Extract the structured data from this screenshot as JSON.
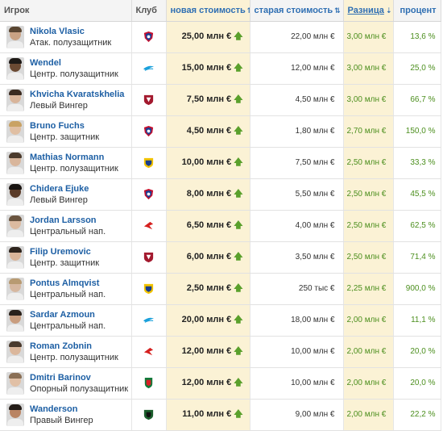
{
  "header": {
    "player": "Игрок",
    "club": "Клуб",
    "new_value": "новая стоимость",
    "old_value": "старая стоимость",
    "difference": "Разница",
    "percent": "процент",
    "sort_icon": "⇅",
    "sorted_icon": "⇣"
  },
  "up_arrow": "🡅",
  "rows": [
    {
      "name": "Nikola Vlasic",
      "position": "Атак. полузащитник",
      "club": "cska-crest-icon",
      "new_value": "25,00 млн €",
      "old_value": "22,00 млн €",
      "difference": "3,00 млн €",
      "percent": "13,6 %"
    },
    {
      "name": "Wendel",
      "position": "Центр. полузащитник",
      "club": "zenit-crest-icon",
      "new_value": "15,00 млн €",
      "old_value": "12,00 млн €",
      "difference": "3,00 млн €",
      "percent": "25,0 %"
    },
    {
      "name": "Khvicha Kvaratskhelia",
      "position": "Левый Вингер",
      "club": "rubin-crest-icon",
      "new_value": "7,50 млн €",
      "old_value": "4,50 млн €",
      "difference": "3,00 млн €",
      "percent": "66,7 %"
    },
    {
      "name": "Bruno Fuchs",
      "position": "Центр. защитник",
      "club": "cska-crest-icon",
      "new_value": "4,50 млн €",
      "old_value": "1,80 млн €",
      "difference": "2,70 млн €",
      "percent": "150,0 %"
    },
    {
      "name": "Mathias Normann",
      "position": "Центр. полузащитник",
      "club": "rostov-crest-icon",
      "new_value": "10,00 млн €",
      "old_value": "7,50 млн €",
      "difference": "2,50 млн €",
      "percent": "33,3 %"
    },
    {
      "name": "Chidera Ejuke",
      "position": "Левый Вингер",
      "club": "cska-crest-icon",
      "new_value": "8,00 млн €",
      "old_value": "5,50 млн €",
      "difference": "2,50 млн €",
      "percent": "45,5 %"
    },
    {
      "name": "Jordan Larsson",
      "position": "Центральный нап.",
      "club": "spartak-crest-icon",
      "new_value": "6,50 млн €",
      "old_value": "4,00 млн €",
      "difference": "2,50 млн €",
      "percent": "62,5 %"
    },
    {
      "name": "Filip Uremovic",
      "position": "Центр. защитник",
      "club": "rubin-crest-icon",
      "new_value": "6,00 млн €",
      "old_value": "3,50 млн €",
      "difference": "2,50 млн €",
      "percent": "71,4 %"
    },
    {
      "name": "Pontus Almqvist",
      "position": "Центральный нап.",
      "club": "rostov-crest-icon",
      "new_value": "2,50 млн €",
      "old_value": "250 тыс €",
      "difference": "2,25 млн €",
      "percent": "900,0 %"
    },
    {
      "name": "Sardar Azmoun",
      "position": "Центральный нап.",
      "club": "zenit-crest-icon",
      "new_value": "20,00 млн €",
      "old_value": "18,00 млн €",
      "difference": "2,00 млн €",
      "percent": "11,1 %"
    },
    {
      "name": "Roman Zobnin",
      "position": "Центр. полузащитник",
      "club": "spartak-crest-icon",
      "new_value": "12,00 млн €",
      "old_value": "10,00 млн €",
      "difference": "2,00 млн €",
      "percent": "20,0 %"
    },
    {
      "name": "Dmitri Barinov",
      "position": "Опорный полузащитник",
      "club": "lokomotiv-crest-icon",
      "new_value": "12,00 млн €",
      "old_value": "10,00 млн €",
      "difference": "2,00 млн €",
      "percent": "20,0 %"
    },
    {
      "name": "Wanderson",
      "position": "Правый Вингер",
      "club": "krasnodar-crest-icon",
      "new_value": "11,00 млн €",
      "old_value": "9,00 млн €",
      "difference": "2,00 млн €",
      "percent": "22,2 %"
    }
  ],
  "avatars": [
    {
      "skin": "#c9a283",
      "hair": "#5a4632"
    },
    {
      "skin": "#6b4a33",
      "hair": "#1e1a17"
    },
    {
      "skin": "#d8b49a",
      "hair": "#3a2a20"
    },
    {
      "skin": "#e0bfa3",
      "hair": "#c9a264"
    },
    {
      "skin": "#d9b69c",
      "hair": "#4b3a2c"
    },
    {
      "skin": "#5a3b28",
      "hair": "#1a1512"
    },
    {
      "skin": "#dcbaa0",
      "hair": "#6b5540"
    },
    {
      "skin": "#dab59a",
      "hair": "#2e241d"
    },
    {
      "skin": "#d6b7a0",
      "hair": "#b89a72"
    },
    {
      "skin": "#c99d7e",
      "hair": "#2a211b"
    },
    {
      "skin": "#dbb79c",
      "hair": "#4a3a2d"
    },
    {
      "skin": "#e1c0a6",
      "hair": "#8a6f55"
    },
    {
      "skin": "#b98463",
      "hair": "#231c17"
    }
  ]
}
